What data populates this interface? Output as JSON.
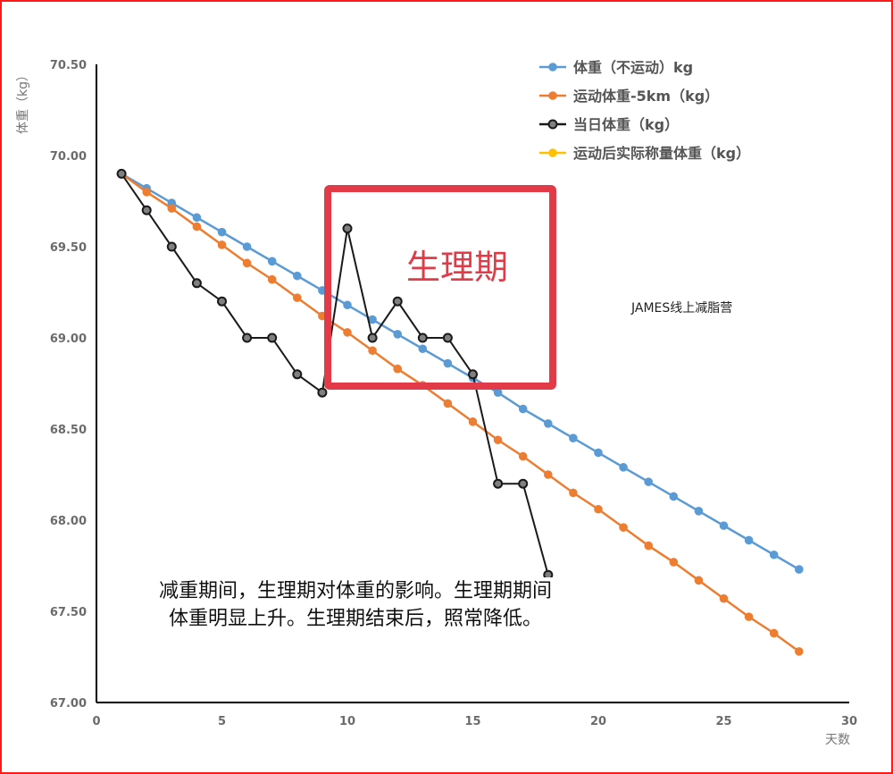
{
  "chart_data": {
    "type": "line",
    "title": "",
    "xlabel": "天数",
    "ylabel": "体重（kg）",
    "xlim": [
      0,
      30
    ],
    "ylim": [
      67.0,
      70.5
    ],
    "x_ticks": [
      "0",
      "5",
      "10",
      "15",
      "20",
      "25",
      "30"
    ],
    "y_ticks": [
      "70.50",
      "70.00",
      "69.50",
      "69.00",
      "68.50",
      "68.00",
      "67.50",
      "67.00"
    ],
    "grid": false,
    "legend_position": "top-right",
    "series": [
      {
        "name": "体重（不运动）kg",
        "color": "#5b9bd5",
        "marker": "filled-circle",
        "x": [
          1,
          2,
          3,
          4,
          5,
          6,
          7,
          8,
          9,
          10,
          11,
          12,
          13,
          14,
          15,
          16,
          17,
          18,
          19,
          20,
          21,
          22,
          23,
          24,
          25,
          26,
          27,
          28
        ],
        "values": [
          69.9,
          69.82,
          69.74,
          69.66,
          69.58,
          69.5,
          69.42,
          69.34,
          69.26,
          69.18,
          69.1,
          69.02,
          68.94,
          68.86,
          68.78,
          68.7,
          68.61,
          68.53,
          68.45,
          68.37,
          68.29,
          68.21,
          68.13,
          68.05,
          67.97,
          67.89,
          67.81,
          67.73
        ]
      },
      {
        "name": "运动体重-5km（kg）",
        "color": "#ed7d31",
        "marker": "filled-circle",
        "x": [
          1,
          2,
          3,
          4,
          5,
          6,
          7,
          8,
          9,
          10,
          11,
          12,
          13,
          14,
          15,
          16,
          17,
          18,
          19,
          20,
          21,
          22,
          23,
          24,
          25,
          26,
          27,
          28
        ],
        "values": [
          69.9,
          69.8,
          69.71,
          69.61,
          69.51,
          69.41,
          69.32,
          69.22,
          69.12,
          69.03,
          68.93,
          68.83,
          68.74,
          68.64,
          68.54,
          68.44,
          68.35,
          68.25,
          68.15,
          68.06,
          67.96,
          67.86,
          67.77,
          67.67,
          67.57,
          67.47,
          67.38,
          67.28
        ]
      },
      {
        "name": "当日体重（kg）",
        "color": "#1a1a1a",
        "marker": "hollow-grey-circle",
        "x": [
          1,
          2,
          3,
          4,
          5,
          6,
          7,
          8,
          9,
          10,
          11,
          12,
          13,
          14,
          15,
          16,
          17,
          18
        ],
        "values": [
          69.9,
          69.7,
          69.5,
          69.3,
          69.2,
          69.0,
          69.0,
          68.8,
          68.7,
          69.6,
          69.0,
          69.2,
          69.0,
          69.0,
          68.8,
          68.2,
          68.2,
          67.7
        ]
      },
      {
        "name": "运动后实际称量体重（kg）",
        "color": "#ffc000",
        "marker": "filled-circle",
        "x": [],
        "values": []
      }
    ],
    "annotations": [
      {
        "type": "box",
        "label": "生理期",
        "x_range": [
          8.9,
          18.3
        ],
        "y_range": [
          68.74,
          69.85
        ],
        "color": "#e23a46"
      },
      {
        "type": "text",
        "text": "JAMES线上减脂营"
      },
      {
        "type": "text",
        "text": "减重期间，生理期对体重的影响。生理期期间 体重明显上升。生理期结束后，照常降低。"
      }
    ]
  },
  "labels": {
    "y_axis_title": "体重（kg）",
    "x_axis_title": "天数",
    "period_label": "生理期",
    "watermark": "JAMES线上减脂营",
    "note_line1": "减重期间，生理期对体重的影响。生理期期间",
    "note_line2": "体重明显上升。生理期结束后，照常降低。"
  },
  "legend": [
    {
      "label": "体重（不运动）kg",
      "color": "#5b9bd5"
    },
    {
      "label": "运动体重-5km（kg）",
      "color": "#ed7d31"
    },
    {
      "label": "当日体重（kg）",
      "color": "#1a1a1a"
    },
    {
      "label": "运动后实际称量体重（kg）",
      "color": "#ffc000"
    }
  ],
  "colors": {
    "frame": "#ff1a1a",
    "axis": "#000000",
    "highlight_box": "#e23a46"
  }
}
